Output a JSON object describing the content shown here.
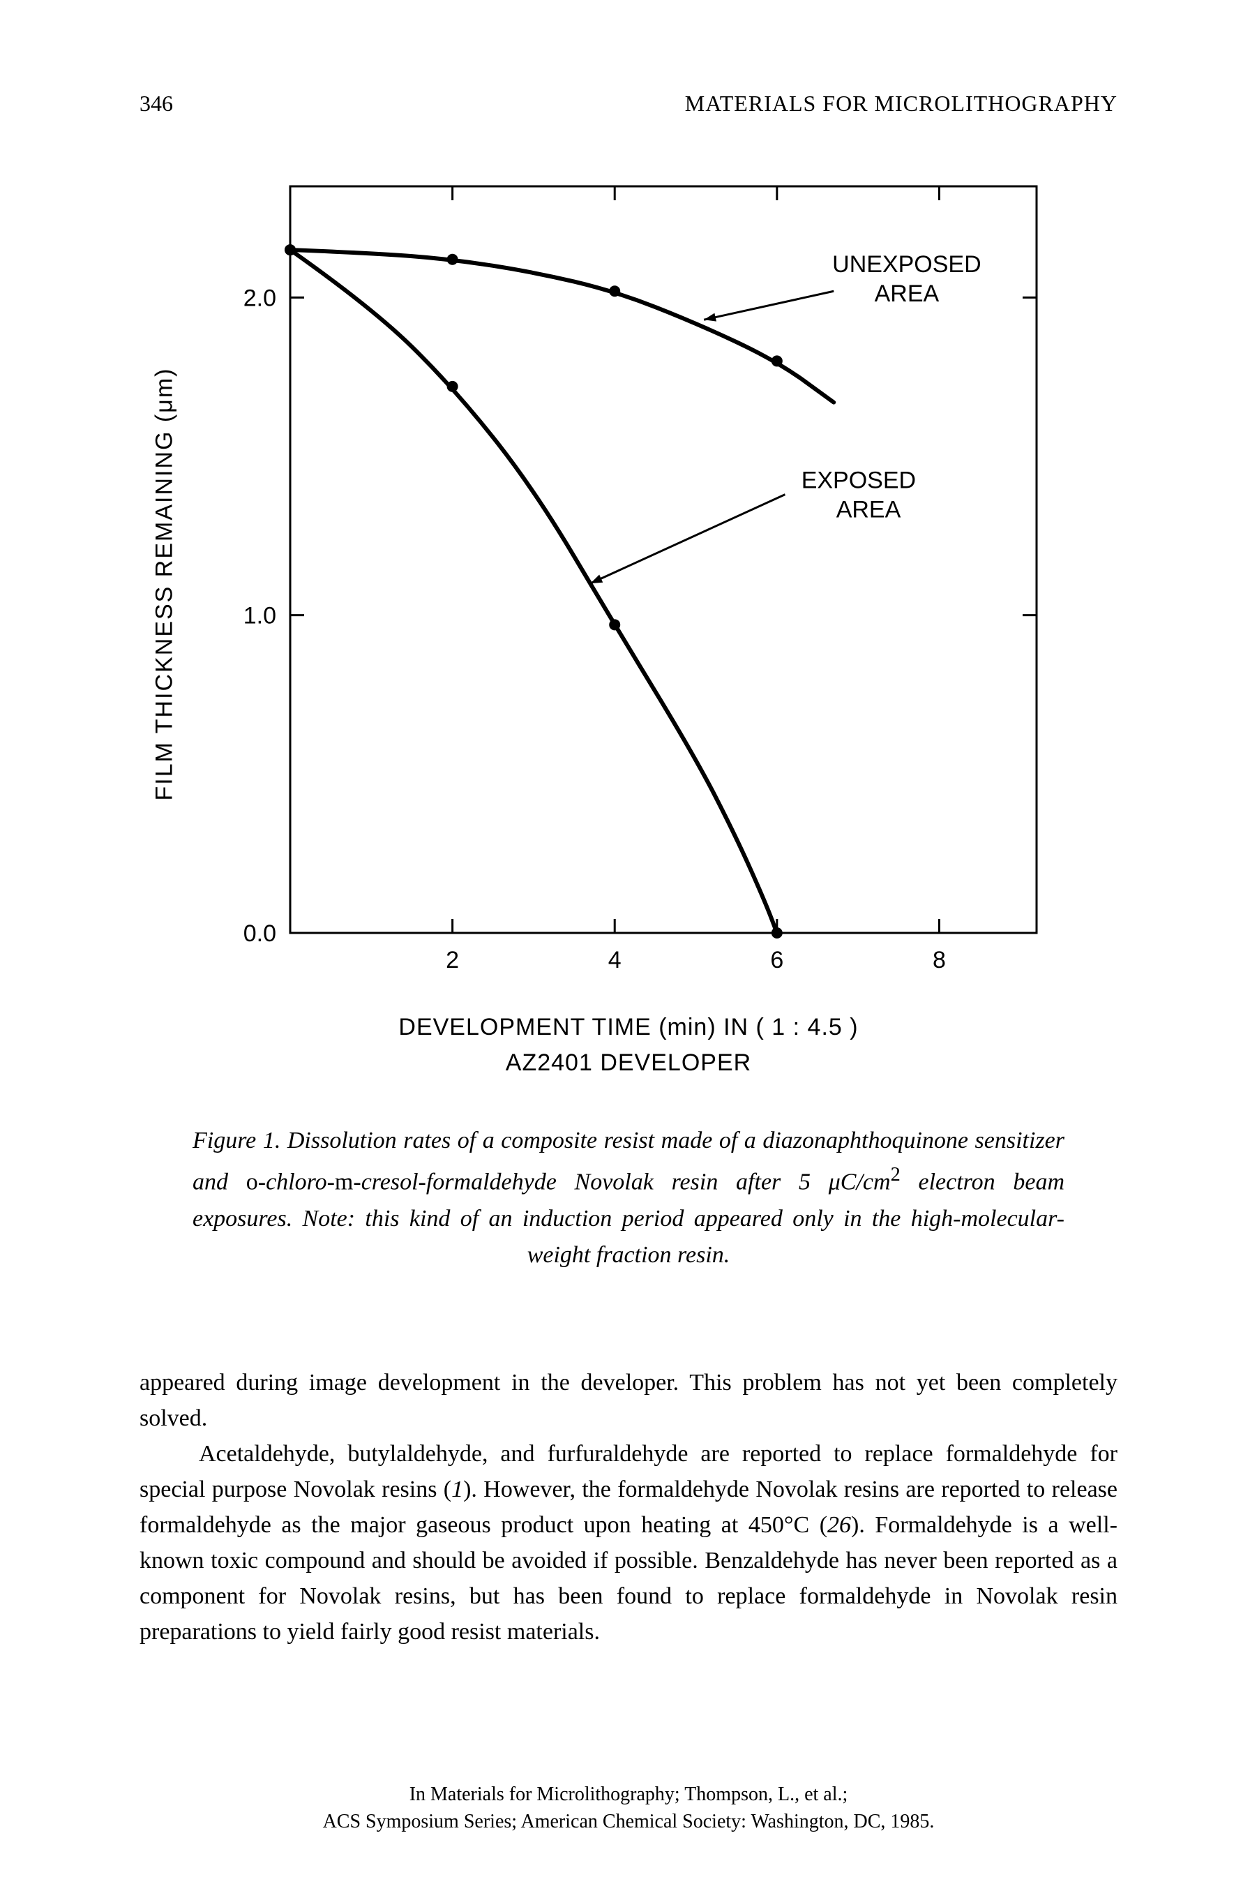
{
  "page_number": "346",
  "book_title": "MATERIALS FOR MICROLITHOGRAPHY",
  "chart": {
    "type": "line",
    "stroke_color": "#000000",
    "background_color": "#ffffff",
    "line_width_axis": 3,
    "line_width_curve": 6,
    "marker_radius": 8,
    "x": {
      "ticks": [
        2,
        4,
        6,
        8
      ],
      "min": 0,
      "max": 9.2
    },
    "y": {
      "ticks": [
        0.0,
        1.0,
        2.0
      ],
      "min": 0.0,
      "max": 2.35
    },
    "y_tick_labels": [
      "0.0",
      "1.0",
      "2.0"
    ],
    "x_tick_labels": [
      "2",
      "4",
      "6",
      "8"
    ],
    "series": {
      "unexposed": {
        "label_line1": "UNEXPOSED",
        "label_line2": "AREA",
        "points_marked": [
          [
            0,
            2.15
          ],
          [
            2,
            2.12
          ],
          [
            4,
            2.02
          ],
          [
            6,
            1.8
          ]
        ],
        "path": [
          [
            0,
            2.15
          ],
          [
            1,
            2.14
          ],
          [
            2,
            2.12
          ],
          [
            3,
            2.08
          ],
          [
            4,
            2.02
          ],
          [
            5,
            1.92
          ],
          [
            6,
            1.8
          ],
          [
            6.7,
            1.67
          ]
        ]
      },
      "exposed": {
        "label_line1": "EXPOSED",
        "label_line2": "AREA",
        "points_marked": [
          [
            0,
            2.15
          ],
          [
            2,
            1.72
          ],
          [
            4,
            0.97
          ],
          [
            6,
            0.0
          ]
        ],
        "path": [
          [
            0,
            2.15
          ],
          [
            1,
            1.97
          ],
          [
            2,
            1.72
          ],
          [
            3,
            1.4
          ],
          [
            4,
            0.97
          ],
          [
            5,
            0.55
          ],
          [
            5.5,
            0.3
          ],
          [
            5.85,
            0.1
          ],
          [
            6,
            0.0
          ]
        ]
      }
    },
    "ylabel": "FILM  THICKNESS  REMAINING  (μm)",
    "xlabel_line1": "DEVELOPMENT  TIME  (min)  IN ( 1 : 4.5 )",
    "xlabel_line2": "AZ2401  DEVELOPER"
  },
  "caption": {
    "lead": "Figure 1.",
    "text_before_roman": " Dissolution rates of a composite resist made of a diazo­naphthoquinone sensitizer and ",
    "roman1": "o-",
    "italic_mid1": "chloro-",
    "roman2": "m-",
    "italic_mid2": "cresol-formaldehyde Novolak resin after 5 μC/cm",
    "sup": "2",
    "text_after": " electron beam exposures. Note: this kind of an induction period appeared only in the high-molecular-weight fraction resin."
  },
  "body": {
    "p1": "appeared during image development in the developer. This problem has not yet been completely solved.",
    "p2_a": "Acetaldehyde, butylaldehyde, and furfuraldehyde are reported to replace formaldehyde for special purpose Novolak resins (",
    "p2_ref1": "1",
    "p2_b": "). However, the formaldehyde Novolak resins are reported to release formaldehyde as the major gaseous product upon heating at 450°C (",
    "p2_ref2": "26",
    "p2_c": "). Formaldehyde is a well-known toxic compound and should be avoided if possible. Benzaldehyde has never been reported as a component for Novolak resins, but has been found to replace formaldehyde in Novolak resin preparations to yield fairly good resist materials."
  },
  "footer": {
    "line1": "In Materials for Microlithography; Thompson, L., et al.;",
    "line2": "ACS Symposium Series; American Chemical Society: Washington, DC, 1985."
  }
}
